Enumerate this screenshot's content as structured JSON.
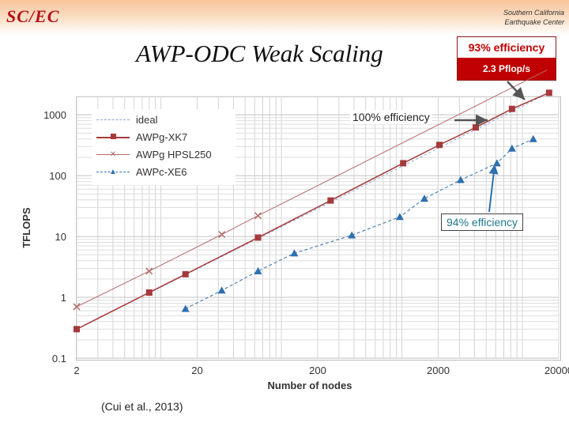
{
  "header": {
    "logo_text": "SC/EC",
    "org_line1": "Southern California",
    "org_line2": "Earthquake Center"
  },
  "slide": {
    "title": "AWP-ODC Weak Scaling",
    "efficiency_box": {
      "efficiency": "93% efficiency",
      "performance": "2.3 Pflop/s"
    },
    "callout_ideal": "100% efficiency",
    "callout_xe6": "94% efficiency",
    "citation": "(Cui et al., 2013)"
  },
  "colors": {
    "xk7": "#a6393b",
    "hpsl": "#b46a6a",
    "xe6": "#2f6fb0",
    "ideal": "#8aa6d0",
    "accent": "#c00000"
  },
  "chart_data": {
    "type": "line",
    "title": "",
    "xlabel": "Number of nodes",
    "ylabel": "TFLOPS",
    "xscale": "log",
    "yscale": "log",
    "xlim": [
      2,
      20000
    ],
    "ylim": [
      0.1,
      2000
    ],
    "x_ticks": [
      "2",
      "20",
      "200",
      "2000",
      "20000"
    ],
    "y_ticks": [
      "0.1",
      "1",
      "10",
      "100",
      "1000"
    ],
    "legend_position": "top-left",
    "series": [
      {
        "name": "ideal",
        "style": "dashed",
        "points": []
      },
      {
        "name": "AWPg-XK7",
        "style": "solid-square",
        "points": [
          [
            2,
            0.3
          ],
          [
            8,
            1.2
          ],
          [
            16,
            2.4
          ],
          [
            64,
            9.6
          ],
          [
            256,
            39
          ],
          [
            1024,
            160
          ],
          [
            2048,
            320
          ],
          [
            4096,
            620
          ],
          [
            8192,
            1250
          ],
          [
            16640,
            2300
          ]
        ]
      },
      {
        "name": "AWPg HPSL250",
        "style": "solid-x",
        "points": [
          [
            2,
            0.7
          ],
          [
            8,
            2.7
          ],
          [
            32,
            10.8
          ],
          [
            64,
            22
          ]
        ]
      },
      {
        "name": "AWPc-XE6",
        "style": "dashed-triangle",
        "points": [
          [
            16,
            0.65
          ],
          [
            32,
            1.3
          ],
          [
            64,
            2.7
          ],
          [
            128,
            5.3
          ],
          [
            384,
            10.5
          ],
          [
            960,
            21
          ],
          [
            1536,
            42
          ],
          [
            3072,
            85
          ],
          [
            6144,
            160
          ],
          [
            8192,
            280
          ],
          [
            12288,
            400
          ]
        ]
      }
    ]
  }
}
